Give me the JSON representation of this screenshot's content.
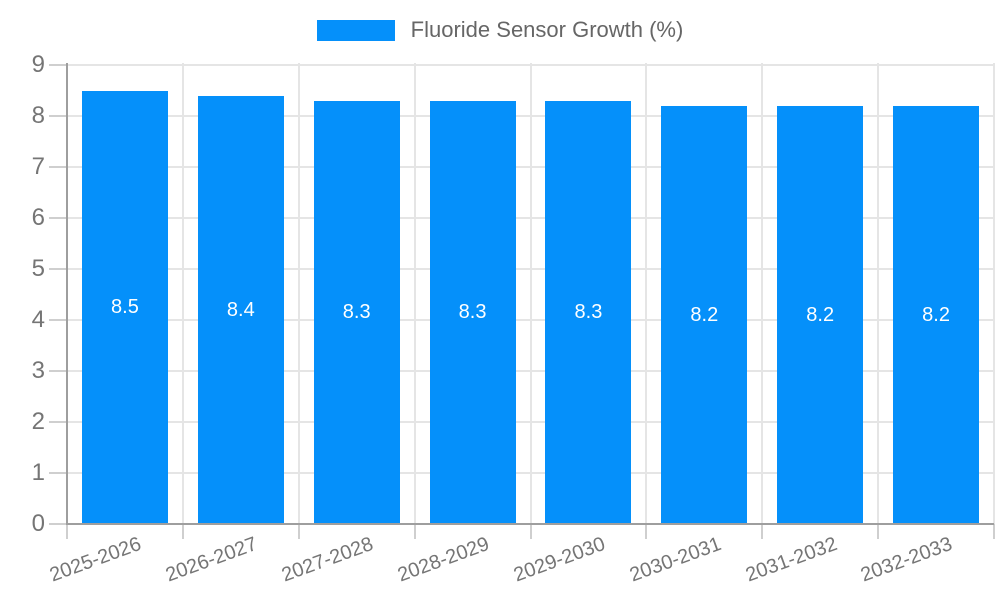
{
  "chart_data": {
    "type": "bar",
    "title": "",
    "legend_label": "Fluoride Sensor Growth (%)",
    "legend_position": "top-center",
    "categories": [
      "2025-2026",
      "2026-2027",
      "2027-2028",
      "2028-2029",
      "2029-2030",
      "2030-2031",
      "2031-2032",
      "2032-2033"
    ],
    "series": [
      {
        "name": "Fluoride Sensor Growth (%)",
        "values": [
          8.5,
          8.4,
          8.3,
          8.3,
          8.3,
          8.2,
          8.2,
          8.2
        ]
      }
    ],
    "bar_value_labels": [
      "8.5",
      "8.4",
      "8.3",
      "8.3",
      "8.3",
      "8.2",
      "8.2",
      "8.2"
    ],
    "xlabel": "",
    "ylabel": "",
    "ylim": [
      0,
      9
    ],
    "y_ticks": [
      0,
      1,
      2,
      3,
      4,
      5,
      6,
      7,
      8,
      9
    ],
    "x_tick_label_rotation_deg": -20,
    "grid": true,
    "colors": {
      "bar": "#0590fa",
      "axis_line": "#9e9e9e",
      "gridline": "#e5e5e5",
      "tick": "#cfcfcf",
      "axis_text": "#757575",
      "legend_text": "#666666",
      "bar_label_text": "#ffffff",
      "background": "#ffffff"
    }
  }
}
